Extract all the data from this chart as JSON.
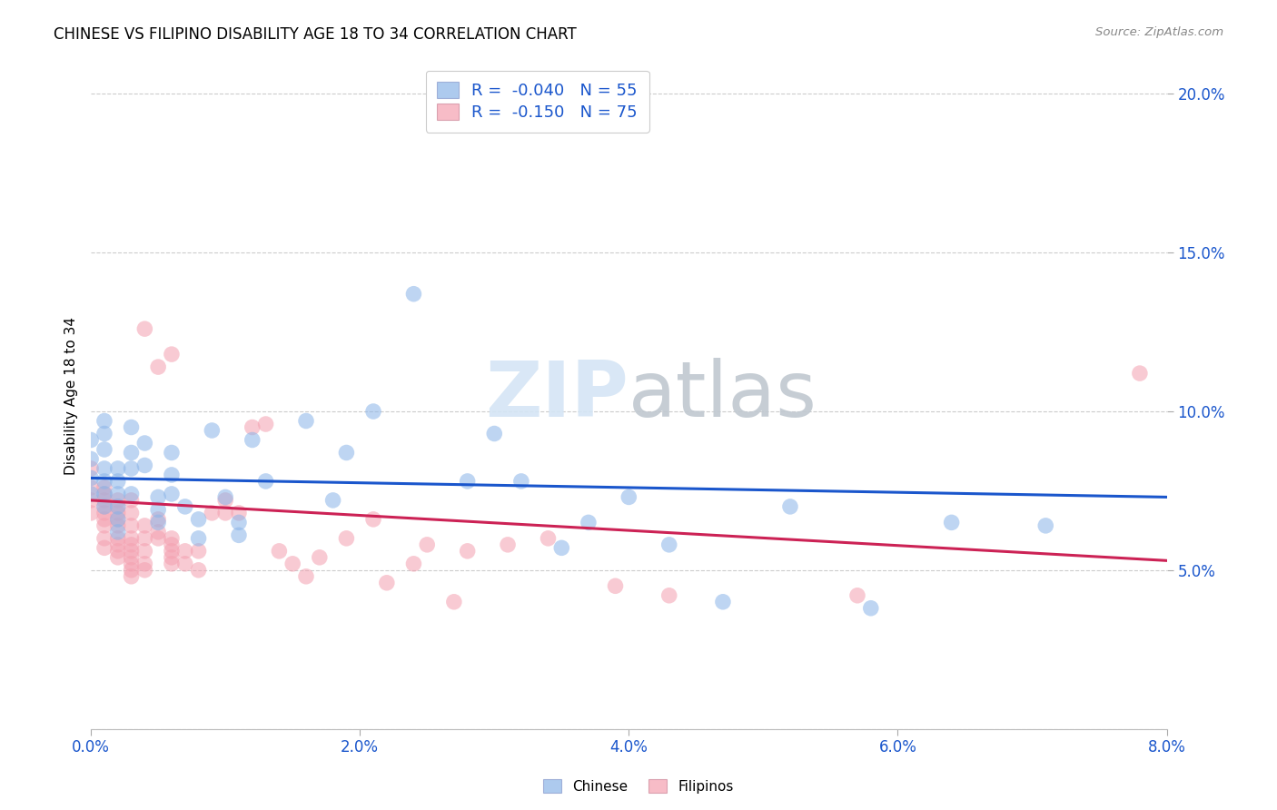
{
  "title": "CHINESE VS FILIPINO DISABILITY AGE 18 TO 34 CORRELATION CHART",
  "source": "Source: ZipAtlas.com",
  "ylabel_label": "Disability Age 18 to 34",
  "xlim": [
    0.0,
    0.08
  ],
  "ylim": [
    0.0,
    0.21
  ],
  "xticks": [
    0.0,
    0.02,
    0.04,
    0.06,
    0.08
  ],
  "yticks": [
    0.05,
    0.1,
    0.15,
    0.2
  ],
  "xticklabels": [
    "0.0%",
    "2.0%",
    "4.0%",
    "6.0%",
    "8.0%"
  ],
  "yticklabels": [
    "5.0%",
    "10.0%",
    "15.0%",
    "20.0%"
  ],
  "chinese_color": "#8ab4e8",
  "filipino_color": "#f4a0b0",
  "trend_chinese_color": "#1a56cc",
  "trend_filipino_color": "#cc2255",
  "legend_color": "#1a56cc",
  "watermark_color": "#d5e5f5",
  "legend_labels_top": [
    "R =  -0.040   N = 55",
    "R =  -0.150   N = 75"
  ],
  "legend_labels_bottom": [
    "Chinese",
    "Filipinos"
  ],
  "chinese_x": [
    0.0,
    0.0,
    0.0,
    0.0,
    0.001,
    0.001,
    0.001,
    0.001,
    0.001,
    0.001,
    0.001,
    0.002,
    0.002,
    0.002,
    0.002,
    0.002,
    0.002,
    0.003,
    0.003,
    0.003,
    0.003,
    0.004,
    0.004,
    0.005,
    0.005,
    0.005,
    0.006,
    0.006,
    0.006,
    0.007,
    0.008,
    0.008,
    0.009,
    0.01,
    0.011,
    0.011,
    0.012,
    0.013,
    0.016,
    0.018,
    0.019,
    0.021,
    0.024,
    0.028,
    0.03,
    0.032,
    0.035,
    0.037,
    0.04,
    0.043,
    0.047,
    0.052,
    0.058,
    0.064,
    0.071
  ],
  "chinese_y": [
    0.085,
    0.079,
    0.074,
    0.091,
    0.097,
    0.093,
    0.088,
    0.082,
    0.078,
    0.074,
    0.07,
    0.078,
    0.074,
    0.07,
    0.066,
    0.062,
    0.082,
    0.087,
    0.082,
    0.095,
    0.074,
    0.09,
    0.083,
    0.073,
    0.069,
    0.065,
    0.087,
    0.08,
    0.074,
    0.07,
    0.066,
    0.06,
    0.094,
    0.073,
    0.065,
    0.061,
    0.091,
    0.078,
    0.097,
    0.072,
    0.087,
    0.1,
    0.137,
    0.078,
    0.093,
    0.078,
    0.057,
    0.065,
    0.073,
    0.058,
    0.04,
    0.07,
    0.038,
    0.065,
    0.064
  ],
  "filipino_x": [
    0.0,
    0.0,
    0.0,
    0.0,
    0.001,
    0.001,
    0.001,
    0.001,
    0.001,
    0.001,
    0.001,
    0.001,
    0.001,
    0.002,
    0.002,
    0.002,
    0.002,
    0.002,
    0.002,
    0.002,
    0.002,
    0.002,
    0.003,
    0.003,
    0.003,
    0.003,
    0.003,
    0.003,
    0.003,
    0.003,
    0.003,
    0.003,
    0.004,
    0.004,
    0.004,
    0.004,
    0.004,
    0.004,
    0.005,
    0.005,
    0.005,
    0.005,
    0.006,
    0.006,
    0.006,
    0.006,
    0.006,
    0.006,
    0.007,
    0.007,
    0.008,
    0.008,
    0.009,
    0.01,
    0.01,
    0.011,
    0.012,
    0.013,
    0.014,
    0.015,
    0.016,
    0.017,
    0.019,
    0.021,
    0.022,
    0.024,
    0.025,
    0.027,
    0.028,
    0.031,
    0.034,
    0.039,
    0.043,
    0.057,
    0.078
  ],
  "filipino_y": [
    0.082,
    0.076,
    0.072,
    0.068,
    0.076,
    0.072,
    0.068,
    0.064,
    0.06,
    0.057,
    0.074,
    0.07,
    0.066,
    0.072,
    0.068,
    0.064,
    0.06,
    0.058,
    0.056,
    0.054,
    0.07,
    0.066,
    0.072,
    0.068,
    0.064,
    0.06,
    0.058,
    0.056,
    0.054,
    0.052,
    0.05,
    0.048,
    0.064,
    0.06,
    0.056,
    0.052,
    0.05,
    0.126,
    0.066,
    0.062,
    0.06,
    0.114,
    0.06,
    0.058,
    0.056,
    0.054,
    0.052,
    0.118,
    0.056,
    0.052,
    0.056,
    0.05,
    0.068,
    0.068,
    0.072,
    0.068,
    0.095,
    0.096,
    0.056,
    0.052,
    0.048,
    0.054,
    0.06,
    0.066,
    0.046,
    0.052,
    0.058,
    0.04,
    0.056,
    0.058,
    0.06,
    0.045,
    0.042,
    0.042,
    0.112
  ]
}
